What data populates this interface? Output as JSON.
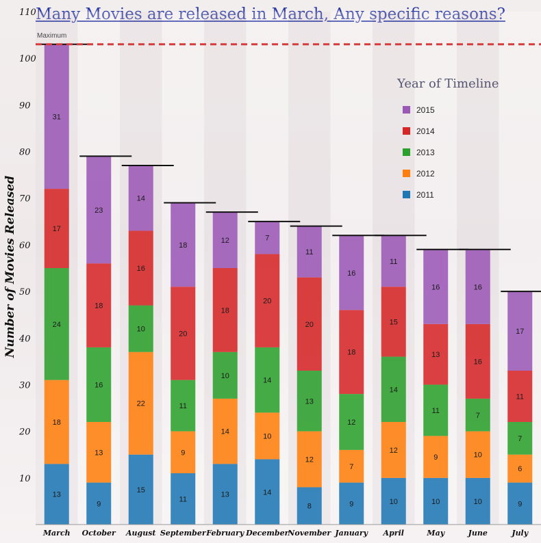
{
  "title": "Many Movies are released in March, Any specific reasons?",
  "colors": {
    "2015": "#9b59b6",
    "2014": "#d62728",
    "2013": "#2ca02c",
    "2012": "#ff7f0e",
    "2011": "#1f77b4",
    "maxline": "#d63c3c"
  },
  "chart_data": {
    "type": "bar",
    "stacked": true,
    "title": "Many Movies are released in March, Any specific reasons?",
    "ylabel": "Number of Movies Released",
    "xlabel": "",
    "ylim": [
      0,
      110
    ],
    "yticks": [
      10,
      20,
      30,
      40,
      50,
      60,
      70,
      80,
      90,
      100,
      110
    ],
    "categories": [
      "March",
      "October",
      "August",
      "September",
      "February",
      "December",
      "November",
      "January",
      "April",
      "May",
      "June",
      "July"
    ],
    "series": [
      {
        "name": "2011",
        "values": [
          13,
          9,
          15,
          11,
          13,
          14,
          8,
          9,
          10,
          10,
          10,
          9
        ]
      },
      {
        "name": "2012",
        "values": [
          18,
          13,
          22,
          9,
          14,
          10,
          12,
          7,
          12,
          9,
          10,
          6
        ]
      },
      {
        "name": "2013",
        "values": [
          24,
          16,
          10,
          11,
          10,
          14,
          13,
          12,
          14,
          11,
          7,
          7
        ]
      },
      {
        "name": "2014",
        "values": [
          17,
          18,
          16,
          20,
          18,
          20,
          20,
          18,
          15,
          13,
          16,
          11
        ]
      },
      {
        "name": "2015",
        "values": [
          31,
          23,
          14,
          18,
          12,
          7,
          11,
          16,
          11,
          16,
          16,
          17
        ]
      }
    ],
    "reference_line": {
      "label": "Maximum",
      "value": 103
    },
    "legend": {
      "title": "Year of Timeline",
      "entries": [
        "2015",
        "2014",
        "2013",
        "2012",
        "2011"
      ],
      "position": "top-right"
    }
  }
}
